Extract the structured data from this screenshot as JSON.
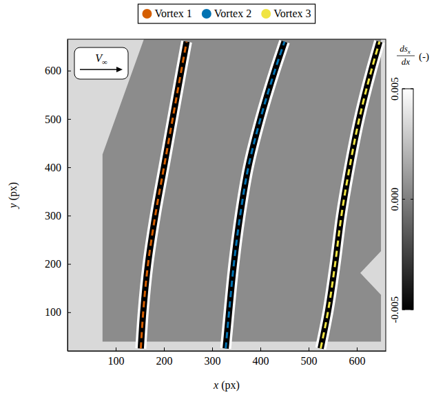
{
  "chart_data": {
    "type": "line",
    "xlabel": "x (px)",
    "ylabel": "y (px)",
    "xlim": [
      0,
      660
    ],
    "ylim": [
      20,
      665
    ],
    "xticks": [
      100,
      200,
      300,
      400,
      500,
      600
    ],
    "yticks": [
      100,
      200,
      300,
      400,
      500,
      600
    ],
    "legend": "top",
    "line_style": "dashed",
    "series": [
      {
        "name": "Vortex 1",
        "color": "#d55e00",
        "x": [
          152,
          157,
          167,
          182,
          200,
          218,
          236,
          247
        ],
        "values": [
          25,
          100,
          200,
          300,
          400,
          500,
          600,
          660
        ]
      },
      {
        "name": "Vortex 2",
        "color": "#0072b2",
        "x": [
          328,
          335,
          345,
          358,
          375,
          400,
          430,
          450
        ],
        "values": [
          25,
          100,
          200,
          300,
          400,
          500,
          600,
          660
        ]
      },
      {
        "name": "Vortex 3",
        "color": "#f0e442",
        "x": [
          525,
          540,
          555,
          568,
          585,
          605,
          630,
          647
        ],
        "values": [
          25,
          100,
          200,
          300,
          400,
          500,
          600,
          660
        ]
      }
    ],
    "annotation": {
      "text": "V",
      "sub": "∞"
    },
    "colorbar": {
      "label_numerator": "ds",
      "label_numerator_sub": "x",
      "label_denominator": "dx",
      "label_unit": "(-)",
      "range": [
        -0.005,
        0.005
      ],
      "ticks": [
        -0.005,
        {
          "value": 0,
          "label": "0.000"
        },
        0.005
      ]
    }
  }
}
